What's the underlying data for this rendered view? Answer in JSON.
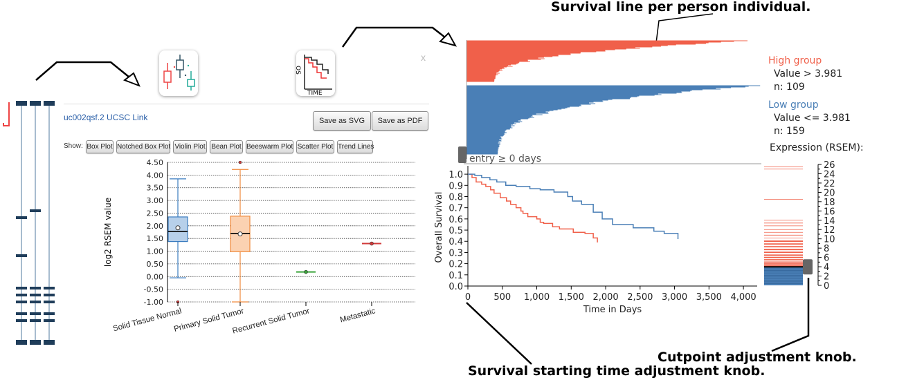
{
  "colors": {
    "high": "#f0604a",
    "low": "#4a7fb6",
    "box_normal": "#3a7bbf",
    "box_tumor": "#f08a3c",
    "recurrent": "#3aa33a",
    "metastatic": "#d23a3a",
    "transcript": "#1f3d5a"
  },
  "annotations": {
    "survival_line": "Survival line per person individual.",
    "cutpoint_knob": "Cutpoint adjustment knob.",
    "start_knob": "Survival starting time adjustment knob."
  },
  "panel": {
    "close": "x",
    "link": "uc002qsf.2 UCSC Link",
    "save_svg": "Save as SVG",
    "save_pdf": "Save as PDF",
    "show_label": "Show:",
    "plot_buttons": [
      "Box Plot",
      "Notched Box Plot",
      "Violin Plot",
      "Bean Plot",
      "Beeswarm Plot",
      "Scatter Plot",
      "Trend Lines"
    ],
    "icons": [
      "boxplot-thumbnail-icon",
      "survival-thumbnail-icon"
    ]
  },
  "survival_icon": {
    "y_letters": "OS",
    "x_label": "TIME"
  },
  "boxplot": {
    "ylabel": "log2 RSEM value",
    "yticks": [
      "4.50",
      "4.00",
      "3.50",
      "3.00",
      "2.50",
      "2.00",
      "1.50",
      "1.00",
      "0.50",
      "0.00",
      "-0.50",
      "-1.00"
    ],
    "categories": [
      "Solid Tissue Normal",
      "Primary Solid Tumor",
      "Recurrent Solid Tumor",
      "Metastatic"
    ],
    "ylim": [
      -1.0,
      4.5
    ],
    "series": [
      {
        "name": "Solid Tissue Normal",
        "min": -0.05,
        "q1": 1.38,
        "median": 1.78,
        "q3": 2.35,
        "max": 3.85,
        "mean": 1.92,
        "outliers": [
          -1.0
        ]
      },
      {
        "name": "Primary Solid Tumor",
        "min": -1.0,
        "q1": 0.98,
        "median": 1.7,
        "q3": 2.38,
        "max": 4.22,
        "mean": 1.68,
        "outliers": [
          4.5
        ]
      },
      {
        "name": "Recurrent Solid Tumor",
        "value": 0.18
      },
      {
        "name": "Metastatic",
        "value": 1.3
      }
    ]
  },
  "survival": {
    "entry_label": "entry ≥ 0 days",
    "high_group": {
      "title": "High group",
      "value": "Value > 3.981",
      "n": "n: 109"
    },
    "low_group": {
      "title": "Low group",
      "value": "Value <= 3.981",
      "n": "n: 159"
    },
    "expression_title": "Expression (RSEM):",
    "xlabel": "Time in Days",
    "ylabel": "Overall Survival",
    "xticks": [
      "0",
      "500",
      "1,000",
      "1,500",
      "2,000",
      "2,500",
      "3,000",
      "3,500",
      "4,000"
    ],
    "yticks": [
      "1.0",
      "0.9",
      "0.8",
      "0.7",
      "0.6",
      "0.5",
      "0.4",
      "0.3",
      "0.2",
      "0.1",
      "0.0"
    ],
    "exp_ticks": [
      "26",
      "24",
      "22",
      "20",
      "18",
      "16",
      "14",
      "12",
      "10",
      "8",
      "6",
      "4",
      "2",
      "0"
    ],
    "cutpoint": 3.981
  },
  "chart_data": {
    "type": "line",
    "xlabel": "Time in Days",
    "ylabel": "Overall Survival",
    "xlim": [
      0,
      4200
    ],
    "ylim": [
      0,
      1.05
    ],
    "series": [
      {
        "name": "High group",
        "x": [
          0,
          60,
          120,
          200,
          260,
          330,
          380,
          470,
          560,
          620,
          700,
          770,
          800,
          870,
          1000,
          1050,
          1100,
          1230,
          1330,
          1530,
          1700,
          1820,
          1880
        ],
        "y": [
          1.0,
          0.97,
          0.93,
          0.91,
          0.89,
          0.86,
          0.83,
          0.79,
          0.76,
          0.73,
          0.7,
          0.67,
          0.65,
          0.62,
          0.6,
          0.57,
          0.56,
          0.53,
          0.51,
          0.48,
          0.47,
          0.43,
          0.39
        ]
      },
      {
        "name": "Low group",
        "x": [
          0,
          100,
          200,
          320,
          420,
          550,
          700,
          900,
          1050,
          1250,
          1450,
          1520,
          1650,
          1820,
          1950,
          2100,
          2400,
          2700,
          2850,
          3050
        ],
        "y": [
          1.0,
          0.99,
          0.97,
          0.95,
          0.93,
          0.9,
          0.89,
          0.87,
          0.86,
          0.84,
          0.8,
          0.76,
          0.73,
          0.66,
          0.6,
          0.55,
          0.52,
          0.49,
          0.47,
          0.42
        ]
      }
    ]
  }
}
